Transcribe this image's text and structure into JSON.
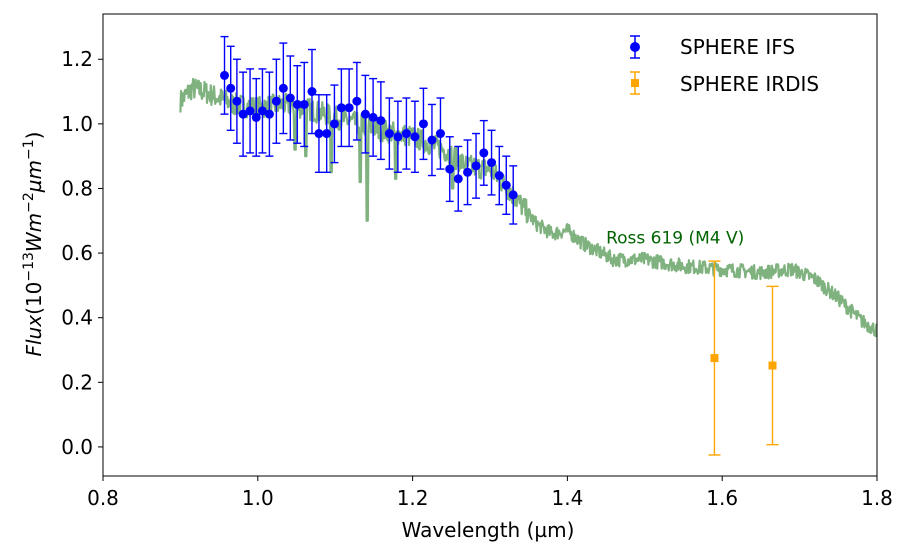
{
  "chart_data": {
    "type": "scatter",
    "xlabel": "Wavelength (µm)",
    "ylabel": {
      "base": "Flux",
      "text": "(10",
      "exp1": "−13",
      "mid1": "Wm",
      "exp2": "−2",
      "mid2": "µm",
      "exp3": "−1",
      "end": ")"
    },
    "xlim": [
      0.8,
      1.8
    ],
    "ylim": [
      -0.09,
      1.34
    ],
    "xticks": [
      0.8,
      1.0,
      1.2,
      1.4,
      1.6,
      1.8
    ],
    "xtick_labels": [
      "0.8",
      "1.0",
      "1.2",
      "1.4",
      "1.6",
      "1.8"
    ],
    "yticks": [
      0.0,
      0.2,
      0.4,
      0.6,
      0.8,
      1.0,
      1.2
    ],
    "ytick_labels": [
      "0.0",
      "0.2",
      "0.4",
      "0.6",
      "0.8",
      "1.0",
      "1.2"
    ],
    "grid": false,
    "legend_position": "top-right",
    "annotation": {
      "text": "Ross 619 (M4 V)",
      "x": 1.45,
      "y": 0.63,
      "color": "#006400"
    },
    "series": [
      {
        "name": "SPHERE IFS",
        "marker": "circle",
        "color": "#0000ff",
        "points": [
          {
            "x": 0.957,
            "y": 1.15,
            "err": 0.12
          },
          {
            "x": 0.965,
            "y": 1.11,
            "err": 0.13
          },
          {
            "x": 0.973,
            "y": 1.07,
            "err": 0.13
          },
          {
            "x": 0.981,
            "y": 1.03,
            "err": 0.13
          },
          {
            "x": 0.99,
            "y": 1.04,
            "err": 0.13
          },
          {
            "x": 0.998,
            "y": 1.02,
            "err": 0.12
          },
          {
            "x": 1.006,
            "y": 1.04,
            "err": 0.13
          },
          {
            "x": 1.015,
            "y": 1.03,
            "err": 0.13
          },
          {
            "x": 1.024,
            "y": 1.07,
            "err": 0.13
          },
          {
            "x": 1.033,
            "y": 1.11,
            "err": 0.14
          },
          {
            "x": 1.042,
            "y": 1.08,
            "err": 0.13
          },
          {
            "x": 1.051,
            "y": 1.06,
            "err": 0.12
          },
          {
            "x": 1.06,
            "y": 1.06,
            "err": 0.13
          },
          {
            "x": 1.07,
            "y": 1.1,
            "err": 0.13
          },
          {
            "x": 1.079,
            "y": 0.97,
            "err": 0.12
          },
          {
            "x": 1.089,
            "y": 0.97,
            "err": 0.12
          },
          {
            "x": 1.099,
            "y": 1.0,
            "err": 0.12
          },
          {
            "x": 1.108,
            "y": 1.05,
            "err": 0.12
          },
          {
            "x": 1.118,
            "y": 1.05,
            "err": 0.12
          },
          {
            "x": 1.128,
            "y": 1.07,
            "err": 0.12
          },
          {
            "x": 1.139,
            "y": 1.03,
            "err": 0.12
          },
          {
            "x": 1.149,
            "y": 1.02,
            "err": 0.12
          },
          {
            "x": 1.159,
            "y": 1.01,
            "err": 0.12
          },
          {
            "x": 1.17,
            "y": 0.97,
            "err": 0.11
          },
          {
            "x": 1.181,
            "y": 0.96,
            "err": 0.11
          },
          {
            "x": 1.192,
            "y": 0.97,
            "err": 0.11
          },
          {
            "x": 1.203,
            "y": 0.96,
            "err": 0.11
          },
          {
            "x": 1.214,
            "y": 1.0,
            "err": 0.11
          },
          {
            "x": 1.225,
            "y": 0.95,
            "err": 0.11
          },
          {
            "x": 1.236,
            "y": 0.97,
            "err": 0.11
          },
          {
            "x": 1.248,
            "y": 0.86,
            "err": 0.1
          },
          {
            "x": 1.259,
            "y": 0.83,
            "err": 0.1
          },
          {
            "x": 1.271,
            "y": 0.85,
            "err": 0.1
          },
          {
            "x": 1.282,
            "y": 0.87,
            "err": 0.1
          },
          {
            "x": 1.292,
            "y": 0.91,
            "err": 0.1
          },
          {
            "x": 1.302,
            "y": 0.88,
            "err": 0.1
          },
          {
            "x": 1.312,
            "y": 0.84,
            "err": 0.09
          },
          {
            "x": 1.321,
            "y": 0.81,
            "err": 0.09
          },
          {
            "x": 1.33,
            "y": 0.78,
            "err": 0.09
          }
        ]
      },
      {
        "name": "SPHERE IRDIS",
        "marker": "square",
        "color": "#ffa500",
        "points": [
          {
            "x": 1.59,
            "y": 0.275,
            "err": 0.3
          },
          {
            "x": 1.665,
            "y": 0.252,
            "err": 0.245
          }
        ]
      },
      {
        "name": "",
        "type": "line",
        "color": "#7fb27f",
        "x_range": [
          0.9,
          1.8
        ],
        "anchors": [
          [
            0.9,
            1.07
          ],
          [
            0.915,
            1.11
          ],
          [
            0.93,
            1.1
          ],
          [
            0.95,
            1.08
          ],
          [
            0.97,
            1.06
          ],
          [
            1.0,
            1.05
          ],
          [
            1.03,
            1.06
          ],
          [
            1.06,
            1.05
          ],
          [
            1.1,
            1.02
          ],
          [
            1.13,
            1.0
          ],
          [
            1.16,
            0.98
          ],
          [
            1.2,
            0.96
          ],
          [
            1.24,
            0.92
          ],
          [
            1.27,
            0.87
          ],
          [
            1.3,
            0.86
          ],
          [
            1.33,
            0.78
          ],
          [
            1.36,
            0.69
          ],
          [
            1.38,
            0.66
          ],
          [
            1.4,
            0.67
          ],
          [
            1.42,
            0.63
          ],
          [
            1.46,
            0.58
          ],
          [
            1.5,
            0.58
          ],
          [
            1.55,
            0.56
          ],
          [
            1.6,
            0.55
          ],
          [
            1.65,
            0.54
          ],
          [
            1.69,
            0.55
          ],
          [
            1.72,
            0.52
          ],
          [
            1.75,
            0.46
          ],
          [
            1.78,
            0.39
          ],
          [
            1.8,
            0.36
          ]
        ],
        "dips": [
          {
            "x": 1.141,
            "y": 0.7
          },
          {
            "x": 1.132,
            "y": 0.82
          },
          {
            "x": 1.178,
            "y": 0.83
          },
          {
            "x": 1.095,
            "y": 0.85
          },
          {
            "x": 1.048,
            "y": 0.92
          },
          {
            "x": 1.062,
            "y": 0.9
          },
          {
            "x": 1.252,
            "y": 0.8
          }
        ]
      }
    ]
  }
}
